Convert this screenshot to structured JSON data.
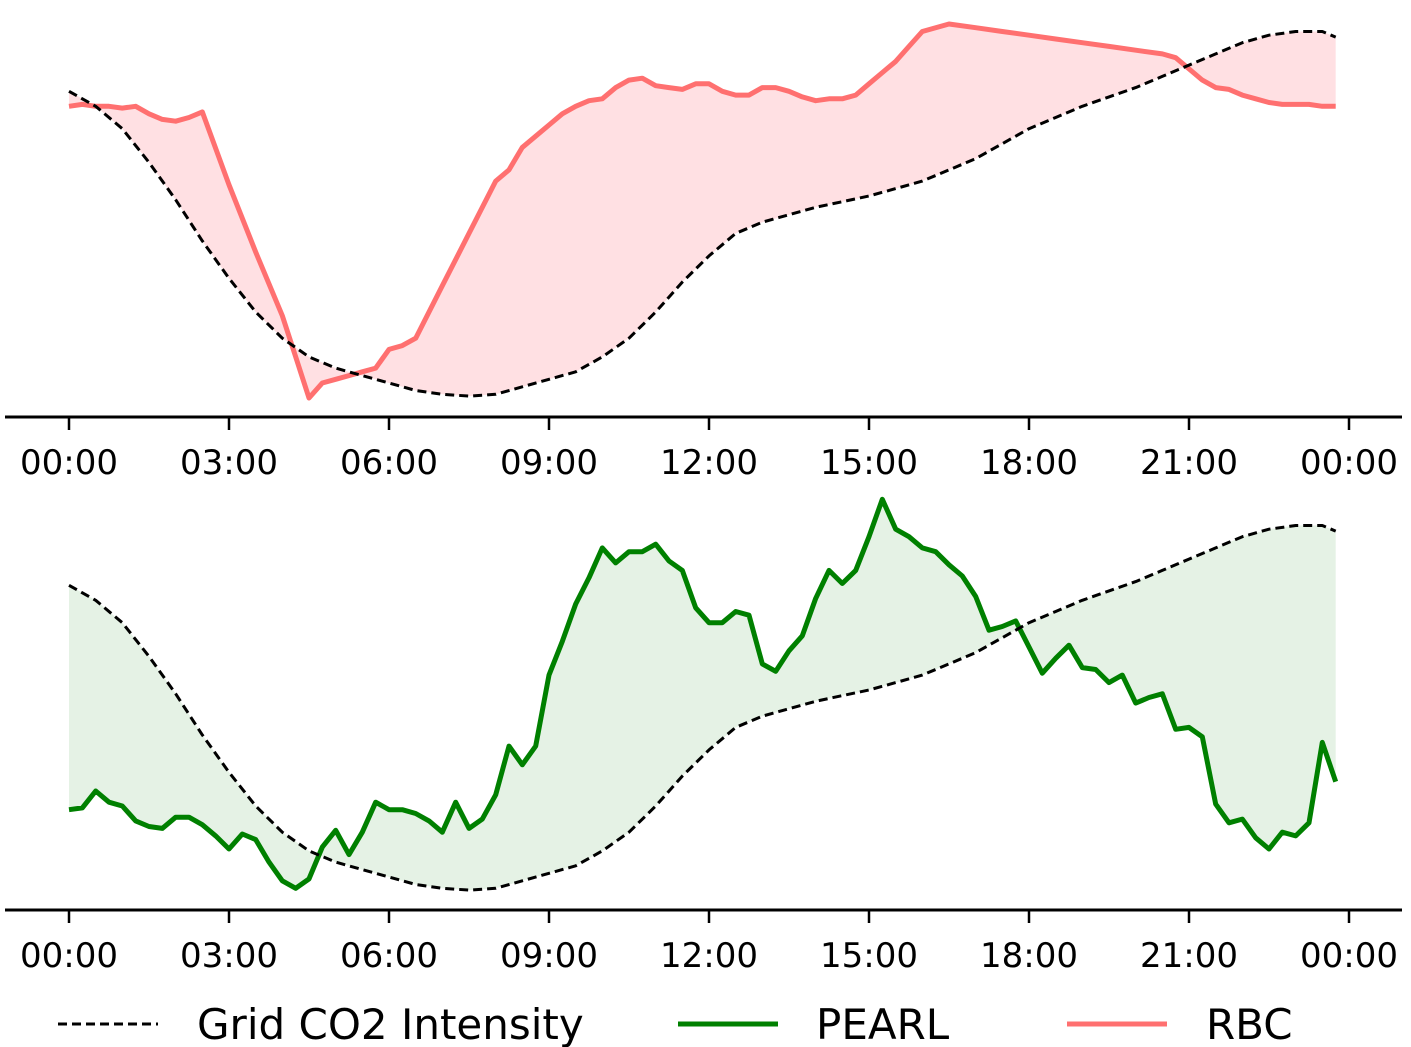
{
  "colors": {
    "grid_co2": "#000000",
    "pearl": "#008000",
    "pearl_fill": "#e5f2e5",
    "rbc": "#ff7070",
    "rbc_fill": "#ffe0e3"
  },
  "chart_data": [
    {
      "type": "line",
      "panel": "top",
      "x_unit": "hours",
      "x_ticks": [
        0,
        3,
        6,
        9,
        12,
        15,
        18,
        21,
        24
      ],
      "x_tick_labels": [
        "00:00",
        "03:00",
        "06:00",
        "09:00",
        "12:00",
        "15:00",
        "18:00",
        "21:00",
        "00:00"
      ],
      "ylim": [
        0,
        100
      ],
      "y_axis_visible": false,
      "fill_between": [
        "Grid CO2 Intensity",
        "RBC"
      ],
      "series": [
        {
          "name": "Grid CO2 Intensity",
          "style": "dashed",
          "x": [
            0,
            0.5,
            1,
            1.5,
            2,
            2.5,
            3,
            3.5,
            4,
            4.5,
            5,
            5.5,
            6,
            6.5,
            7,
            7.5,
            8,
            8.5,
            9,
            9.5,
            10,
            10.5,
            11,
            11.5,
            12,
            12.5,
            13,
            13.5,
            14,
            14.5,
            15,
            15.5,
            16,
            16.5,
            17,
            17.5,
            18,
            18.5,
            19,
            19.5,
            20,
            20.5,
            21,
            21.5,
            22,
            22.5,
            23,
            23.5,
            23.75
          ],
          "y": [
            82,
            78,
            72,
            63,
            53,
            42,
            32,
            23,
            16,
            11,
            8,
            6,
            4,
            2,
            1,
            0.5,
            1,
            3,
            5,
            7,
            11,
            16,
            23,
            31,
            38,
            44,
            47,
            49,
            51,
            52.5,
            54,
            56,
            58,
            61,
            64,
            68,
            72,
            75,
            78,
            80.5,
            83,
            86,
            89,
            92,
            95,
            97,
            98,
            98,
            96.5
          ]
        },
        {
          "name": "RBC",
          "style": "solid",
          "x": [
            0,
            0.25,
            0.5,
            0.75,
            1,
            1.25,
            1.5,
            1.75,
            2,
            2.25,
            2.5,
            3,
            3.5,
            4,
            4.25,
            4.5,
            4.75,
            5,
            5.25,
            5.5,
            5.75,
            6,
            6.25,
            6.5,
            7,
            7.5,
            8,
            8.25,
            8.5,
            9,
            9.25,
            9.5,
            9.75,
            10,
            10.25,
            10.5,
            10.75,
            11,
            11.25,
            11.5,
            11.75,
            12,
            12.25,
            12.5,
            12.75,
            13,
            13.25,
            13.5,
            13.75,
            14,
            14.25,
            14.5,
            14.75,
            15,
            15.25,
            15.5,
            15.75,
            16,
            16.5,
            17,
            17.5,
            18,
            18.5,
            19,
            19.5,
            20,
            20.5,
            20.75,
            21,
            21.25,
            21.5,
            21.75,
            22,
            22.25,
            22.5,
            22.75,
            23,
            23.25,
            23.5,
            23.75
          ],
          "y": [
            78,
            78.5,
            78,
            78,
            77.5,
            78,
            76,
            74.5,
            74,
            75,
            76.5,
            57,
            39,
            22,
            11,
            0,
            4,
            5,
            6,
            7,
            8,
            13,
            14,
            16,
            30,
            44,
            58,
            61,
            67,
            73,
            76,
            78,
            79.5,
            80,
            83,
            85,
            85.5,
            83.5,
            83,
            82.5,
            84,
            84,
            82,
            81,
            81,
            83,
            83,
            82,
            80.5,
            79.5,
            80,
            80,
            81,
            84,
            87,
            90,
            94,
            98,
            100,
            99,
            98,
            97,
            96,
            95,
            94,
            93,
            92,
            91,
            88,
            85,
            83,
            82.5,
            81,
            80,
            79,
            78.5,
            78.5,
            78.5,
            78,
            78
          ]
        }
      ]
    },
    {
      "type": "line",
      "panel": "bottom",
      "x_unit": "hours",
      "x_ticks": [
        0,
        3,
        6,
        9,
        12,
        15,
        18,
        21,
        24
      ],
      "x_tick_labels": [
        "00:00",
        "03:00",
        "06:00",
        "09:00",
        "12:00",
        "15:00",
        "18:00",
        "21:00",
        "00:00"
      ],
      "ylim": [
        0,
        100
      ],
      "y_axis_visible": false,
      "fill_between": [
        "Grid CO2 Intensity",
        "PEARL"
      ],
      "series": [
        {
          "name": "Grid CO2 Intensity",
          "style": "dashed",
          "x": [
            0,
            0.5,
            1,
            1.5,
            2,
            2.5,
            3,
            3.5,
            4,
            4.5,
            5,
            5.5,
            6,
            6.5,
            7,
            7.5,
            8,
            8.5,
            9,
            9.5,
            10,
            10.5,
            11,
            11.5,
            12,
            12.5,
            13,
            13.5,
            14,
            14.5,
            15,
            15.5,
            16,
            16.5,
            17,
            17.5,
            18,
            18.5,
            19,
            19.5,
            20,
            20.5,
            21,
            21.5,
            22,
            22.5,
            23,
            23.5,
            23.75
          ],
          "y": [
            82,
            78,
            72,
            63,
            53,
            42,
            32,
            23,
            16,
            11,
            8,
            6,
            4,
            2,
            1,
            0.5,
            1,
            3,
            5,
            7,
            11,
            16,
            23,
            31,
            38,
            44,
            47,
            49,
            51,
            52.5,
            54,
            56,
            58,
            61,
            64,
            68,
            72,
            75,
            78,
            80.5,
            83,
            86,
            89,
            92,
            95,
            97,
            98,
            98,
            96.5
          ]
        },
        {
          "name": "PEARL",
          "style": "solid",
          "x": [
            0,
            0.25,
            0.5,
            0.75,
            1,
            1.25,
            1.5,
            1.75,
            2,
            2.25,
            2.5,
            2.75,
            3,
            3.25,
            3.5,
            3.75,
            4,
            4.25,
            4.5,
            4.75,
            5,
            5.25,
            5.5,
            5.75,
            6,
            6.25,
            6.5,
            6.75,
            7,
            7.25,
            7.5,
            7.75,
            8,
            8.25,
            8.5,
            8.75,
            9,
            9.25,
            9.5,
            9.75,
            10,
            10.25,
            10.5,
            10.75,
            11,
            11.25,
            11.5,
            11.75,
            12,
            12.25,
            12.5,
            12.75,
            13,
            13.25,
            13.5,
            13.75,
            14,
            14.25,
            14.5,
            14.75,
            15,
            15.25,
            15.5,
            15.75,
            16,
            16.25,
            16.5,
            16.75,
            17,
            17.25,
            17.5,
            17.75,
            18,
            18.25,
            18.5,
            18.75,
            19,
            19.25,
            19.5,
            19.75,
            20,
            20.25,
            20.5,
            20.75,
            21,
            21.25,
            21.5,
            21.75,
            22,
            22.25,
            22.5,
            22.75,
            23,
            23.25,
            23.5,
            23.75
          ],
          "y": [
            22,
            22.5,
            27,
            24,
            23,
            19,
            17.5,
            17,
            20,
            20,
            18,
            15,
            11.5,
            15.5,
            14,
            8,
            3,
            1,
            3.5,
            12,
            16.5,
            10,
            16,
            24,
            22,
            22,
            21,
            19,
            16,
            24,
            17,
            19.5,
            26,
            39,
            34,
            39,
            58,
            67,
            77,
            84,
            92,
            88,
            91,
            91,
            93,
            88.5,
            86,
            76,
            72,
            72,
            75,
            74,
            61,
            59,
            64.5,
            68.5,
            78.5,
            86,
            82.5,
            86,
            95,
            105,
            97,
            95,
            92,
            91,
            87.5,
            84.5,
            79,
            70,
            71,
            72.5,
            65.5,
            58.5,
            62.5,
            66,
            60,
            59.5,
            56,
            58,
            50.5,
            52,
            53,
            43.5,
            44,
            41.5,
            23.5,
            18.5,
            19.5,
            14.5,
            11.5,
            16,
            15,
            18.5,
            40,
            29.5
          ]
        }
      ]
    }
  ],
  "legend": {
    "position": "bottom",
    "entries": [
      {
        "label": "Grid CO2 Intensity",
        "style": "dashed",
        "color": "#000000"
      },
      {
        "label": "PEARL",
        "style": "solid",
        "color": "#008000"
      },
      {
        "label": "RBC",
        "style": "solid",
        "color": "#ff7070"
      }
    ]
  }
}
